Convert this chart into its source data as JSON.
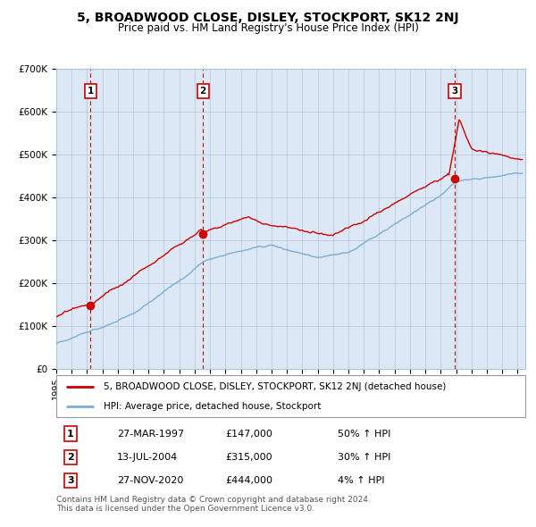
{
  "title": "5, BROADWOOD CLOSE, DISLEY, STOCKPORT, SK12 2NJ",
  "subtitle": "Price paid vs. HM Land Registry's House Price Index (HPI)",
  "xlim_start": 1995.0,
  "xlim_end": 2025.5,
  "ylim": [
    0,
    700000
  ],
  "yticks": [
    0,
    100000,
    200000,
    300000,
    400000,
    500000,
    600000,
    700000
  ],
  "ytick_labels": [
    "£0",
    "£100K",
    "£200K",
    "£300K",
    "£400K",
    "£500K",
    "£600K",
    "£700K"
  ],
  "sale_dates": [
    1997.23,
    2004.54,
    2020.91
  ],
  "sale_prices": [
    147000,
    315000,
    444000
  ],
  "sale_labels": [
    "1",
    "2",
    "3"
  ],
  "hpi_color": "#7aadd4",
  "price_color": "#cc0000",
  "vline_color": "#cc0000",
  "background_color": "#dce8f5",
  "grid_color": "#b0c4d8",
  "legend_entries": [
    "5, BROADWOOD CLOSE, DISLEY, STOCKPORT, SK12 2NJ (detached house)",
    "HPI: Average price, detached house, Stockport"
  ],
  "table_rows": [
    [
      "1",
      "27-MAR-1997",
      "£147,000",
      "50% ↑ HPI"
    ],
    [
      "2",
      "13-JUL-2004",
      "£315,000",
      "30% ↑ HPI"
    ],
    [
      "3",
      "27-NOV-2020",
      "£444,000",
      "4% ↑ HPI"
    ]
  ],
  "footnote1": "Contains HM Land Registry data © Crown copyright and database right 2024.",
  "footnote2": "This data is licensed under the Open Government Licence v3.0."
}
